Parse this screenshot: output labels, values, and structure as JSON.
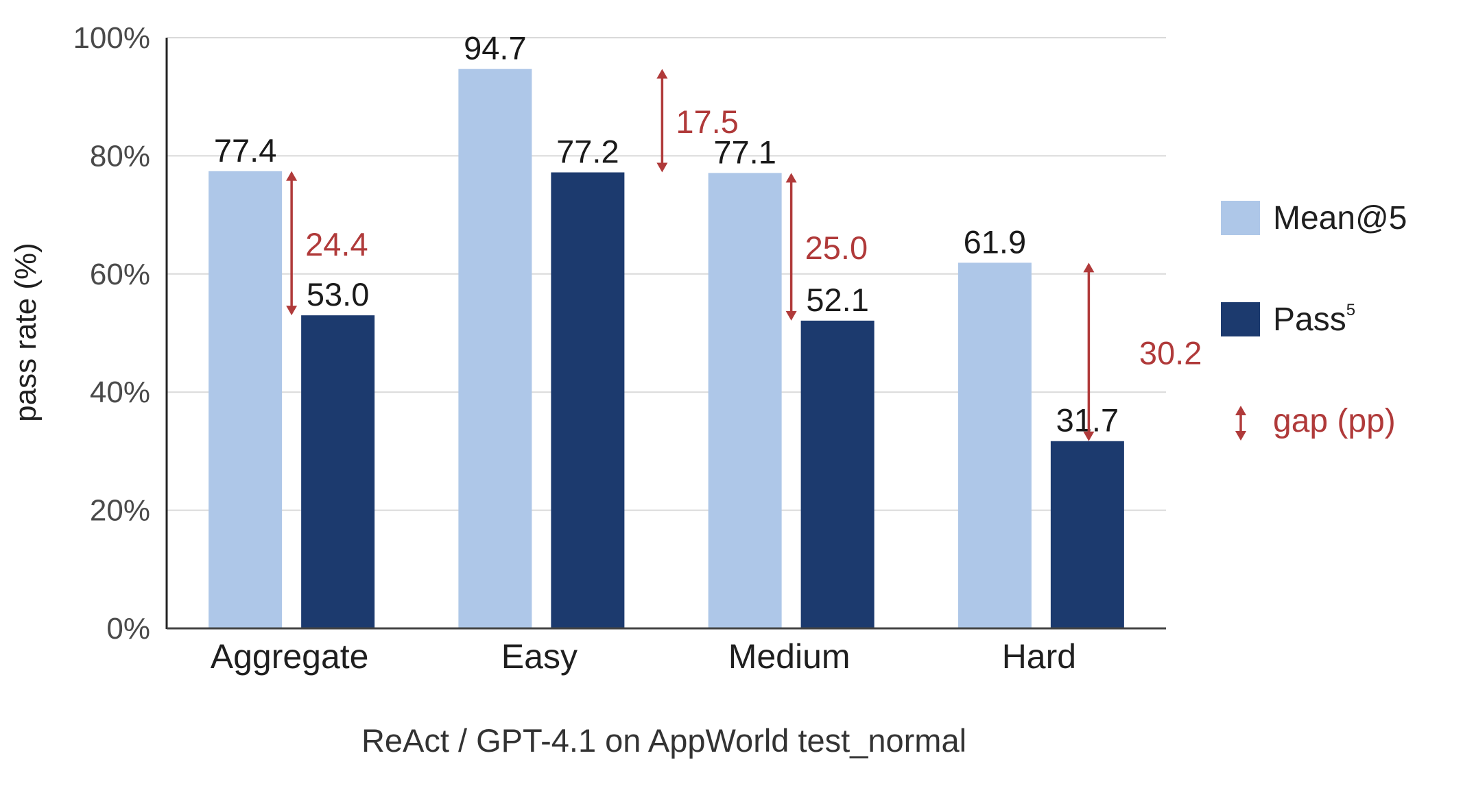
{
  "chart_data": {
    "type": "bar",
    "categories": [
      "Aggregate",
      "Easy",
      "Medium",
      "Hard"
    ],
    "series": [
      {
        "name": "Mean@5",
        "values": [
          77.4,
          94.7,
          77.1,
          61.9
        ],
        "color": "#aec7e8"
      },
      {
        "name": "Pass",
        "superscript": "5",
        "values": [
          53.0,
          77.2,
          52.1,
          31.7
        ],
        "color": "#1c3a6e"
      }
    ],
    "value_labels": [
      [
        "77.4",
        "94.7",
        "77.1",
        "61.9"
      ],
      [
        "53.0",
        "77.2",
        "52.1",
        "31.7"
      ]
    ],
    "gaps": [
      24.4,
      17.5,
      25.0,
      30.2
    ],
    "gap_labels": [
      "24.4",
      "17.5",
      "25.0",
      "30.2"
    ],
    "gap_legend": "gap (pp)",
    "gap_color": "#b03a3a",
    "ylabel": "pass rate (%)",
    "xlabel": "ReAct / GPT-4.1 on AppWorld test_normal",
    "ylim": [
      0,
      100
    ],
    "yticks": [
      0,
      20,
      40,
      60,
      80,
      100
    ],
    "ytick_labels": [
      "0%",
      "20%",
      "40%",
      "60%",
      "80%",
      "100%"
    ],
    "grid": true,
    "legend_position": "right"
  }
}
